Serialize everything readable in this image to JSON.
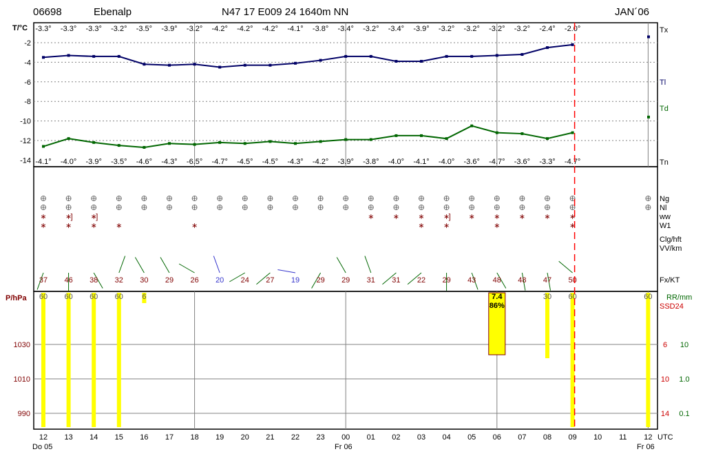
{
  "header": {
    "station_id": "06698",
    "station_name": "Ebenalp",
    "coords": "N47 17 E009 24 1640m NN",
    "month": "JAN´06"
  },
  "colors": {
    "tmax_line": "#000066",
    "tmin_line": "#006600",
    "label_dark_red": "#800000",
    "label_red": "#cc0000",
    "label_green": "#006600",
    "bar_yellow": "#ffff00",
    "grid_gray": "#808080",
    "wind_blue": "#3333cc",
    "now_line": "#ff0000"
  },
  "labels": {
    "temp_axis": "T/°C",
    "tx": "Tx",
    "tl": "Tl",
    "td": "Td",
    "tn": "Tn",
    "ng": "Ng",
    "nl": "Nl",
    "ww": "ww",
    "w1": "W1",
    "clg": "Clg/hft",
    "vv": "VV/km",
    "fxkt": "Fx/KT",
    "pressure_axis": "P/hPa",
    "rr": "RR/mm",
    "ssd": "SSD24",
    "utc": "UTC",
    "day_start": "Do 05",
    "day_mid": "Fr 06",
    "day_end": "Fr 06"
  },
  "chart_data": {
    "type": "line",
    "time_labels": [
      "12",
      "13",
      "14",
      "15",
      "16",
      "17",
      "18",
      "19",
      "20",
      "21",
      "22",
      "23",
      "00",
      "01",
      "02",
      "03",
      "04",
      "05",
      "06",
      "07",
      "08",
      "09",
      "10",
      "11",
      "12"
    ],
    "tx_labels": [
      "-3.3°",
      "-3.3°",
      "-3.3°",
      "-3.2°",
      "-3.5°",
      "-3.9°",
      "-3.2°",
      "-4.2°",
      "-4.2°",
      "-4.2°",
      "-4.1°",
      "-3.8°",
      "-3.4°",
      "-3.2°",
      "-3.4°",
      "-3.9°",
      "-3.2°",
      "-3.2°",
      "-3.2°",
      "-3.2°",
      "-2.4°",
      "-2.0°"
    ],
    "tn_labels": [
      "-4.1°",
      "-4.0°",
      "-3.9°",
      "-3.5°",
      "-4.6°",
      "-4.3°",
      "-6.5°",
      "-4.7°",
      "-4.5°",
      "-4.5°",
      "-4.3°",
      "-4.2°",
      "-3.9°",
      "-3.8°",
      "-4.0°",
      "-4.1°",
      "-4.0°",
      "-3.6°",
      "-4.7°",
      "-3.6°",
      "-3.3°",
      "-4.7°"
    ],
    "temperature": {
      "name": "Tl",
      "values": [
        -3.5,
        -3.3,
        -3.4,
        -3.4,
        -4.2,
        -4.3,
        -4.2,
        -4.5,
        -4.3,
        -4.3,
        -4.1,
        -3.8,
        -3.4,
        -3.4,
        -3.9,
        -3.9,
        -3.4,
        -3.4,
        -3.3,
        -3.2,
        -2.5,
        -2.2
      ]
    },
    "dewpoint": {
      "name": "Td",
      "values": [
        -12.6,
        -11.8,
        -12.2,
        -12.5,
        -12.7,
        -12.3,
        -12.4,
        -12.2,
        -12.3,
        -12.1,
        -12.3,
        -12.1,
        -11.9,
        -11.9,
        -11.5,
        -11.5,
        -11.8,
        -10.5,
        -11.2,
        -11.3,
        -11.8,
        -11.2
      ]
    },
    "tx_marker": -1.4,
    "td_marker": -9.6,
    "y_ticks": [
      -2,
      -4,
      -6,
      -8,
      -10,
      -12,
      -14
    ],
    "ylim": [
      -14.2,
      -0.5
    ],
    "gust_kt": [
      37,
      46,
      38,
      32,
      30,
      29,
      26,
      20,
      24,
      27,
      19,
      29,
      29,
      31,
      31,
      22,
      29,
      43,
      48,
      48,
      47,
      50
    ],
    "gust_color_idx": [
      "r",
      "r",
      "r",
      "r",
      "r",
      "r",
      "r",
      "b",
      "r",
      "r",
      "b",
      "r",
      "r",
      "r",
      "r",
      "r",
      "r",
      "r",
      "r",
      "r",
      "r",
      "r"
    ],
    "wind_dir_deg": [
      200,
      180,
      150,
      20,
      330,
      330,
      300,
      340,
      240,
      230,
      280,
      210,
      330,
      340,
      230,
      230,
      180,
      160,
      150,
      170,
      170,
      310
    ],
    "ng_symbol_idx": [
      0,
      1,
      2,
      3,
      4,
      5,
      6,
      7,
      8,
      9,
      10,
      11,
      12,
      13,
      14,
      15,
      16,
      17,
      18,
      19,
      20,
      21,
      24
    ],
    "ww_symbol": "∗",
    "ww_hours_idx": [
      0,
      1,
      2,
      13,
      14,
      15,
      16,
      17,
      18,
      19,
      20,
      21
    ],
    "w1_hours_idx": [
      0,
      1,
      2,
      3,
      6,
      15,
      16,
      18,
      21
    ],
    "bracket_hours_idx": [
      1,
      2,
      16
    ],
    "sunshine_min": [
      60,
      60,
      60,
      60,
      6,
      0,
      0,
      0,
      0,
      0,
      0,
      0,
      0,
      0,
      0,
      0,
      0,
      0,
      0,
      0,
      30,
      60,
      0,
      0,
      60
    ],
    "sunshine_labels": [
      "60",
      "60",
      "60",
      "60",
      "6",
      "",
      "",
      "",
      "",
      "",
      "",
      "",
      "",
      "",
      "",
      "",
      "",
      "",
      "",
      "",
      "30",
      "60",
      "",
      "",
      "60"
    ],
    "ssd_value": "7.4",
    "ssd_percent": "86%",
    "pressure_ticks": [
      1030,
      1010,
      990
    ],
    "rr_ticks_left": [
      "6",
      "10",
      "14"
    ],
    "rr_ticks_right": [
      "10",
      "1.0",
      "0.1"
    ],
    "now_index": 21
  }
}
